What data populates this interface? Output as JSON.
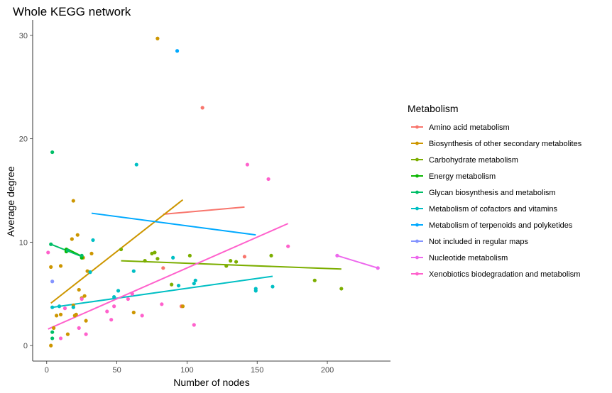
{
  "chart_data": {
    "type": "scatter",
    "title": "Whole KEGG network",
    "xlabel": "Number of nodes",
    "ylabel": "Average degree",
    "xlim": [
      -10,
      245
    ],
    "ylim": [
      -1.5,
      31.5
    ],
    "xticks": [
      0,
      50,
      100,
      150,
      200
    ],
    "yticks": [
      0,
      10,
      20,
      30
    ],
    "grid": false,
    "legend": {
      "title": "Metabolism",
      "position": "right"
    },
    "series": [
      {
        "name": "Amino acid metabolism",
        "color": "#F8766D",
        "points": [
          [
            111,
            23.0
          ],
          [
            83,
            7.5
          ],
          [
            141,
            8.6
          ],
          [
            96,
            3.8
          ]
        ],
        "trend": [
          [
            83,
            12.7
          ],
          [
            141,
            13.4
          ]
        ]
      },
      {
        "name": "Biosynthesis of other secondary metabolites",
        "color": "#CD9600",
        "points": [
          [
            79,
            29.7
          ],
          [
            3,
            0.0
          ],
          [
            3,
            7.6
          ],
          [
            5,
            1.7
          ],
          [
            7,
            2.9
          ],
          [
            10,
            3.0
          ],
          [
            10,
            7.7
          ],
          [
            15,
            1.1
          ],
          [
            18,
            10.3
          ],
          [
            19,
            14.0
          ],
          [
            19,
            3.9
          ],
          [
            20,
            2.9
          ],
          [
            21,
            3.0
          ],
          [
            22,
            10.7
          ],
          [
            23,
            5.4
          ],
          [
            25,
            4.6
          ],
          [
            26,
            8.5
          ],
          [
            27,
            4.8
          ],
          [
            28,
            2.4
          ],
          [
            29,
            7.2
          ],
          [
            32,
            8.9
          ],
          [
            62,
            3.2
          ],
          [
            97,
            3.8
          ]
        ],
        "trend": [
          [
            3,
            4.1
          ],
          [
            97,
            14.1
          ]
        ]
      },
      {
        "name": "Carbohydrate metabolism",
        "color": "#7CAE00",
        "points": [
          [
            53,
            9.3
          ],
          [
            70,
            8.2
          ],
          [
            75,
            8.9
          ],
          [
            77,
            9.0
          ],
          [
            79,
            8.4
          ],
          [
            89,
            5.9
          ],
          [
            102,
            8.7
          ],
          [
            128,
            7.7
          ],
          [
            131,
            8.2
          ],
          [
            135,
            8.1
          ],
          [
            160,
            8.7
          ],
          [
            191,
            6.3
          ],
          [
            210,
            5.5
          ]
        ],
        "trend": [
          [
            53,
            8.2
          ],
          [
            210,
            7.4
          ]
        ]
      },
      {
        "name": "Energy metabolism",
        "color": "#0CB702",
        "points": [
          [
            14,
            9.1
          ],
          [
            14,
            9.3
          ],
          [
            25,
            8.5
          ]
        ],
        "trend": [
          [
            14,
            9.4
          ],
          [
            27,
            8.5
          ]
        ]
      },
      {
        "name": "Glycan biosynthesis and metabolism",
        "color": "#00BE67",
        "points": [
          [
            4,
            18.7
          ],
          [
            4,
            0.7
          ],
          [
            4,
            1.3
          ],
          [
            15,
            9.2
          ],
          [
            25,
            8.7
          ],
          [
            3,
            9.8
          ]
        ],
        "trend": [
          [
            3,
            9.8
          ],
          [
            27,
            8.5
          ]
        ]
      },
      {
        "name": "Metabolism of cofactors and vitamins",
        "color": "#00BFC4",
        "points": [
          [
            64,
            17.5
          ],
          [
            33,
            10.2
          ],
          [
            4,
            3.7
          ],
          [
            9,
            3.8
          ],
          [
            19,
            3.7
          ],
          [
            31,
            7.1
          ],
          [
            48,
            4.7
          ],
          [
            51,
            5.3
          ],
          [
            62,
            7.2
          ],
          [
            90,
            8.5
          ],
          [
            94,
            5.8
          ],
          [
            105,
            6.0
          ],
          [
            106,
            6.3
          ],
          [
            149,
            5.3
          ],
          [
            149,
            5.5
          ],
          [
            161,
            5.7
          ]
        ],
        "trend": [
          [
            4,
            3.7
          ],
          [
            161,
            6.7
          ]
        ]
      },
      {
        "name": "Metabolism of terpenoids and polyketides",
        "color": "#00A9FF",
        "points": [
          [
            93,
            28.5
          ]
        ],
        "trend": [
          [
            32,
            12.8
          ],
          [
            149,
            10.7
          ]
        ]
      },
      {
        "name": "Not included in regular maps",
        "color": "#8494FF",
        "points": [
          [
            4,
            6.2
          ]
        ],
        "trend": []
      },
      {
        "name": "Nucleotide metabolism",
        "color": "#ED68ED",
        "points": [
          [
            207,
            8.7
          ],
          [
            236,
            7.5
          ]
        ],
        "trend": [
          [
            207,
            8.7
          ],
          [
            236,
            7.5
          ]
        ]
      },
      {
        "name": "Xenobiotics biodegradation and metabolism",
        "color": "#FF61CC",
        "points": [
          [
            143,
            17.5
          ],
          [
            158,
            16.1
          ],
          [
            172,
            9.6
          ],
          [
            1,
            9.0
          ],
          [
            10,
            0.7
          ],
          [
            13,
            3.6
          ],
          [
            23,
            1.7
          ],
          [
            25,
            4.5
          ],
          [
            28,
            1.1
          ],
          [
            43,
            3.3
          ],
          [
            46,
            2.5
          ],
          [
            48,
            3.8
          ],
          [
            58,
            4.5
          ],
          [
            61,
            5.0
          ],
          [
            68,
            2.9
          ],
          [
            82,
            4.0
          ],
          [
            105,
            2.0
          ]
        ],
        "trend": [
          [
            1,
            1.6
          ],
          [
            172,
            11.8
          ]
        ]
      }
    ]
  }
}
